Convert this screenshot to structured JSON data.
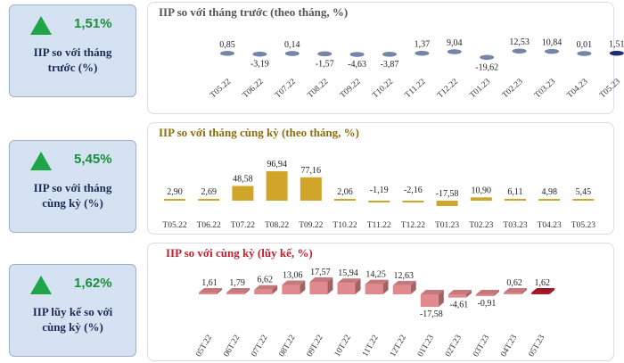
{
  "cards": [
    {
      "value": "1,51%",
      "label_line1": "IIP so với tháng",
      "label_line2": "trước (%)"
    },
    {
      "value": "5,45%",
      "label_line1": "IIP so với tháng",
      "label_line2": "cùng kỳ (%)"
    },
    {
      "value": "1,62%",
      "label_line1": "IIP lũy kế so với",
      "label_line2": "cùng kỳ (%)"
    }
  ],
  "colors": {
    "up_triangle": "#1fa447",
    "chart1_bar": "#7585a8",
    "chart1_highlight": "#1c2f6b",
    "chart2_bar": "#cfa52a",
    "chart3_bar": "#e08a8e",
    "chart3_highlight": "#b01c2a",
    "title1": "#555555",
    "title2": "#8d6b0e",
    "title3": "#c0212e"
  },
  "chart_data": [
    {
      "type": "bar",
      "title": "IIP so với tháng trước (theo tháng, %)",
      "categories": [
        "T05.22",
        "T06.22",
        "T07.22",
        "T08.22",
        "T09.22",
        "T10.22",
        "T11.22",
        "T12.22",
        "T01.23",
        "T02.23",
        "T03.23",
        "T04.23",
        "T05.23"
      ],
      "values": [
        0.85,
        -3.19,
        0.14,
        -1.57,
        -4.63,
        -3.87,
        1.37,
        9.04,
        -19.62,
        12.53,
        10.84,
        0.01,
        1.51
      ],
      "value_labels": [
        "0,85",
        "-3,19",
        "0,14",
        "-1,57",
        "-4,63",
        "-3,87",
        "1,37",
        "9,04",
        "-19,62",
        "12,53",
        "10,84",
        "0,01",
        "1,51"
      ],
      "highlight_index": 12
    },
    {
      "type": "bar",
      "title": "IIP so với tháng cùng kỳ (theo tháng, %)",
      "categories": [
        "T05.22",
        "T06.22",
        "T07.22",
        "T08.22",
        "T09.22",
        "T10.22",
        "T11.22",
        "T12.22",
        "T01.23",
        "T02.23",
        "T03.23",
        "T04.23",
        "T05.23"
      ],
      "values": [
        2.9,
        2.69,
        48.58,
        96.94,
        77.16,
        2.06,
        -1.19,
        -2.16,
        -17.58,
        10.9,
        6.11,
        4.98,
        5.45
      ],
      "value_labels": [
        "2,90",
        "2,69",
        "48,58",
        "96,94",
        "77,16",
        "2,06",
        "-1,19",
        "-2,16",
        "-17,58",
        "10,90",
        "6,11",
        "4,98",
        "5,45"
      ]
    },
    {
      "type": "bar",
      "title": "IIP so với cùng kỳ (lũy kế, %)",
      "categories": [
        "05T.22",
        "06T.22",
        "07T.22",
        "08T.22",
        "09T.22",
        "10T.22",
        "11T.22",
        "12T.22",
        "01T.23",
        "02T.23",
        "03T.23",
        "04T.23",
        "05T.23"
      ],
      "values": [
        1.61,
        1.79,
        6.62,
        13.06,
        17.57,
        15.94,
        14.25,
        12.63,
        -17.58,
        -4.61,
        -0.91,
        0.62,
        1.62
      ],
      "value_labels": [
        "1,61",
        "1,79",
        "6,62",
        "13,06",
        "17,57",
        "15,94",
        "14,25",
        "12,63",
        "-17,58",
        "-4,61",
        "-0,91",
        "0,62",
        "1,62"
      ],
      "highlight_index": 12
    }
  ]
}
